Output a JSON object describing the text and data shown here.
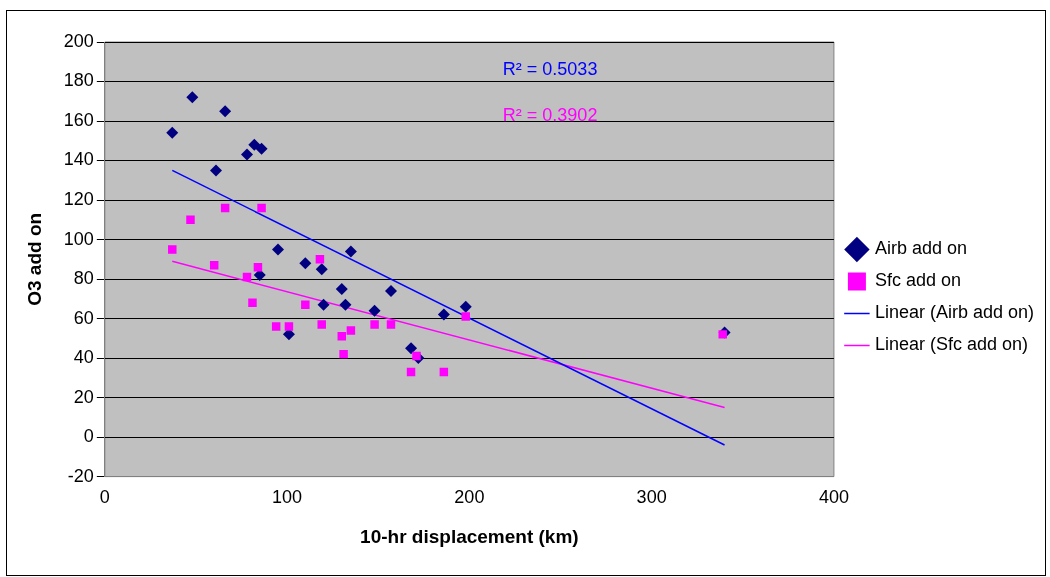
{
  "chart_data": {
    "type": "scatter",
    "xlabel": "10-hr displacement (km)",
    "ylabel": "O3 add on",
    "xlim": [
      0,
      400
    ],
    "xticks": [
      0,
      100,
      200,
      300,
      400
    ],
    "ylim": [
      -20,
      200
    ],
    "yticks": [
      -20,
      0,
      20,
      40,
      60,
      80,
      100,
      120,
      140,
      160,
      180,
      200
    ],
    "grid": "y",
    "legend": "right",
    "annotations": [
      "R² = 0.5033",
      "R² = 0.3902"
    ],
    "series": [
      {
        "name": "Airb add on",
        "color": "#000080",
        "marker": "diamond",
        "x": [
          37,
          48,
          61,
          66,
          78,
          82,
          86,
          95,
          85,
          110,
          119,
          120,
          135,
          130,
          132,
          157,
          148,
          101,
          168,
          172,
          186,
          198,
          340
        ],
        "values": [
          154,
          172,
          135,
          165,
          143,
          148,
          146,
          95,
          82,
          88,
          85,
          67,
          94,
          75,
          67,
          74,
          64,
          52,
          45,
          40,
          62,
          66,
          53
        ]
      },
      {
        "name": "Sfc add on",
        "color": "#ff00ff",
        "marker": "square",
        "x": [
          37,
          47,
          60,
          66,
          86,
          78,
          81,
          84,
          118,
          110,
          94,
          101,
          119,
          130,
          135,
          131,
          148,
          157,
          168,
          171,
          186,
          198,
          339
        ],
        "values": [
          95,
          110,
          87,
          116,
          116,
          81,
          68,
          86,
          90,
          67,
          56,
          56,
          57,
          51,
          54,
          42,
          57,
          57,
          33,
          41,
          33,
          61,
          52
        ]
      },
      {
        "name": "Linear (Airb add on)",
        "type": "line",
        "color": "#0000ff",
        "marker": "none",
        "x": [
          37,
          340
        ],
        "values": [
          135,
          -4
        ]
      },
      {
        "name": "Linear (Sfc add on)",
        "type": "line",
        "color": "#ff00ff",
        "marker": "none",
        "x": [
          37,
          340
        ],
        "values": [
          89,
          15
        ]
      }
    ]
  }
}
